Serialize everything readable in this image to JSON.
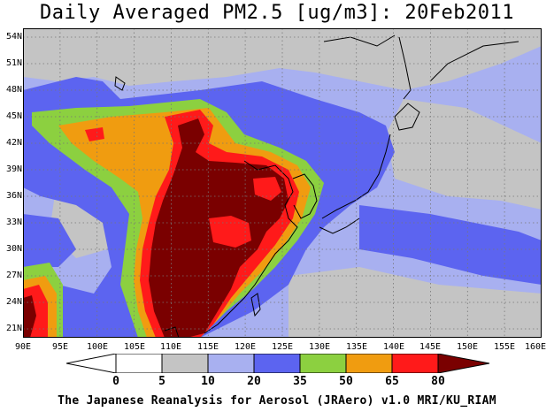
{
  "title": "Daily Averaged PM2.5 [ug/m3]: 20Feb2011",
  "footer": "The Japanese Reanalysis for Aerosol (JRAero) v1.0 MRI/KU_RIAM",
  "map": {
    "lon_range": [
      90,
      160
    ],
    "lat_range": [
      20,
      55
    ],
    "x_ticks": [
      "90E",
      "95E",
      "100E",
      "105E",
      "110E",
      "115E",
      "120E",
      "125E",
      "130E",
      "135E",
      "140E",
      "145E",
      "150E",
      "155E",
      "160E"
    ],
    "y_ticks": [
      "54N",
      "51N",
      "48N",
      "45N",
      "42N",
      "39N",
      "36N",
      "33N",
      "30N",
      "27N",
      "24N",
      "21N"
    ],
    "grid": "dotted"
  },
  "colorbar": {
    "labels": [
      "0",
      "5",
      "10",
      "20",
      "35",
      "50",
      "65",
      "80"
    ],
    "bins": [
      {
        "range": "<0",
        "color": "#ffffff"
      },
      {
        "range": "0-5",
        "color": "#ffffff"
      },
      {
        "range": "5-10",
        "color": "#c4c4c4"
      },
      {
        "range": "10-20",
        "color": "#a8b0f0"
      },
      {
        "range": "20-35",
        "color": "#5c64f0"
      },
      {
        "range": "35-50",
        "color": "#8cd040"
      },
      {
        "range": "50-65",
        "color": "#f09c10"
      },
      {
        "range": "65-80",
        "color": "#ff1a1a"
      },
      {
        "range": ">80",
        "color": "#7a0000"
      }
    ]
  }
}
